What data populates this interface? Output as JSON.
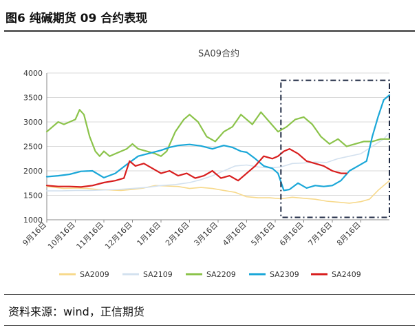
{
  "figure": {
    "title": "图6  纯碱期货 09 合约表现",
    "source": "资料来源：wind，正信期货"
  },
  "chart_data": {
    "type": "line",
    "title": "SA09合约",
    "ylim": [
      1000,
      4000
    ],
    "yticks": [
      1000,
      1500,
      2000,
      2500,
      3000,
      3500,
      4000
    ],
    "x_range": [
      0,
      12.0
    ],
    "xticks": [
      {
        "label": "9月16日",
        "pos": 0
      },
      {
        "label": "10月16日",
        "pos": 1
      },
      {
        "label": "11月16日",
        "pos": 2
      },
      {
        "label": "12月16日",
        "pos": 3
      },
      {
        "label": "1月16日",
        "pos": 4
      },
      {
        "label": "2月16日",
        "pos": 5
      },
      {
        "label": "3月16日",
        "pos": 6
      },
      {
        "label": "4月16日",
        "pos": 7
      },
      {
        "label": "5月16日",
        "pos": 8
      },
      {
        "label": "6月16日",
        "pos": 9
      },
      {
        "label": "7月16日",
        "pos": 10
      },
      {
        "label": "8月16日",
        "pos": 11
      }
    ],
    "highlight_box": {
      "x": [
        8.2,
        12.0
      ],
      "y": [
        1050,
        3850
      ]
    },
    "series": [
      {
        "name": "SA2009",
        "color": "#f7d98b",
        "width": 1.6,
        "x": [
          0,
          0.3,
          0.6,
          1.0,
          1.4,
          1.8,
          2.2,
          2.6,
          3.0,
          3.4,
          3.8,
          4.2,
          4.6,
          5.0,
          5.4,
          5.8,
          6.2,
          6.6,
          7.0,
          7.4,
          7.8,
          8.2,
          8.6,
          9.0,
          9.4,
          9.8,
          10.2,
          10.6,
          11.0,
          11.3,
          11.6,
          12.0
        ],
        "values": [
          1680,
          1660,
          1640,
          1650,
          1640,
          1620,
          1610,
          1600,
          1620,
          1650,
          1700,
          1690,
          1680,
          1640,
          1660,
          1640,
          1600,
          1560,
          1470,
          1450,
          1450,
          1430,
          1460,
          1440,
          1420,
          1380,
          1360,
          1340,
          1370,
          1420,
          1600,
          1800
        ]
      },
      {
        "name": "SA2109",
        "color": "#d3e1ef",
        "width": 1.6,
        "x": [
          0,
          0.5,
          1.0,
          1.5,
          2.0,
          2.5,
          3.0,
          3.5,
          4.0,
          4.5,
          5.0,
          5.4,
          5.8,
          6.2,
          6.6,
          7.0,
          7.4,
          7.8,
          8.2,
          8.6,
          9.0,
          9.4,
          9.8,
          10.2,
          10.6,
          11.0,
          11.4,
          11.8,
          12.0
        ],
        "values": [
          1590,
          1590,
          1600,
          1600,
          1610,
          1620,
          1640,
          1660,
          1700,
          1720,
          1760,
          1820,
          1900,
          2000,
          2100,
          2120,
          2080,
          2060,
          2080,
          2150,
          2160,
          2180,
          2170,
          2250,
          2300,
          2350,
          2500,
          2650,
          2780
        ]
      },
      {
        "name": "SA2209",
        "color": "#8bc34a",
        "width": 2.2,
        "x": [
          0,
          0.2,
          0.4,
          0.6,
          0.8,
          1.0,
          1.15,
          1.3,
          1.5,
          1.7,
          1.85,
          2.0,
          2.2,
          2.4,
          2.6,
          2.8,
          3.0,
          3.2,
          3.5,
          3.8,
          4.0,
          4.2,
          4.5,
          4.8,
          5.0,
          5.3,
          5.6,
          5.9,
          6.2,
          6.5,
          6.8,
          7.0,
          7.2,
          7.5,
          7.8,
          8.1,
          8.4,
          8.7,
          9.0,
          9.3,
          9.6,
          9.9,
          10.2,
          10.5,
          10.8,
          11.1,
          11.4,
          11.7,
          12.0
        ],
        "values": [
          2800,
          2900,
          3000,
          2950,
          3000,
          3050,
          3250,
          3150,
          2700,
          2400,
          2300,
          2400,
          2300,
          2350,
          2400,
          2450,
          2550,
          2450,
          2400,
          2350,
          2300,
          2400,
          2800,
          3050,
          3150,
          3000,
          2700,
          2600,
          2800,
          2900,
          3150,
          3050,
          2950,
          3200,
          3000,
          2800,
          2900,
          3050,
          3100,
          2950,
          2700,
          2550,
          2650,
          2500,
          2550,
          2600,
          2600,
          2650,
          2650
        ]
      },
      {
        "name": "SA2309",
        "color": "#1aa7d8",
        "width": 2.2,
        "x": [
          0,
          0.4,
          0.8,
          1.2,
          1.6,
          2.0,
          2.4,
          2.8,
          3.2,
          3.6,
          4.0,
          4.3,
          4.6,
          5.0,
          5.4,
          5.8,
          6.2,
          6.5,
          6.8,
          7.0,
          7.3,
          7.6,
          7.9,
          8.1,
          8.3,
          8.5,
          8.8,
          9.1,
          9.4,
          9.7,
          10.0,
          10.3,
          10.6,
          10.9,
          11.2,
          11.4,
          11.6,
          11.8,
          12.0
        ],
        "values": [
          1880,
          1900,
          1930,
          1990,
          2000,
          1860,
          1950,
          2130,
          2300,
          2360,
          2420,
          2480,
          2520,
          2540,
          2510,
          2450,
          2520,
          2480,
          2400,
          2380,
          2250,
          2100,
          2050,
          1950,
          1600,
          1620,
          1750,
          1650,
          1700,
          1680,
          1700,
          1800,
          2000,
          2100,
          2200,
          2700,
          3100,
          3450,
          3550
        ]
      },
      {
        "name": "SA2409",
        "color": "#d81e1e",
        "width": 2.2,
        "x": [
          0,
          0.4,
          0.8,
          1.2,
          1.6,
          2.0,
          2.4,
          2.7,
          2.9,
          3.1,
          3.4,
          3.7,
          4.0,
          4.3,
          4.6,
          4.9,
          5.2,
          5.5,
          5.8,
          6.1,
          6.4,
          6.7,
          7.0,
          7.3,
          7.6,
          7.9,
          8.1,
          8.3,
          8.5,
          8.8,
          9.1,
          9.4,
          9.7,
          10.0,
          10.3,
          10.5
        ],
        "values": [
          1700,
          1680,
          1680,
          1670,
          1700,
          1760,
          1800,
          1850,
          2200,
          2100,
          2150,
          2050,
          1950,
          2000,
          1900,
          1950,
          1850,
          1900,
          2000,
          1850,
          1900,
          1800,
          1950,
          2100,
          2300,
          2250,
          2300,
          2400,
          2450,
          2350,
          2200,
          2150,
          2100,
          2000,
          1950,
          1950
        ]
      }
    ],
    "legend_position": "bottom"
  }
}
